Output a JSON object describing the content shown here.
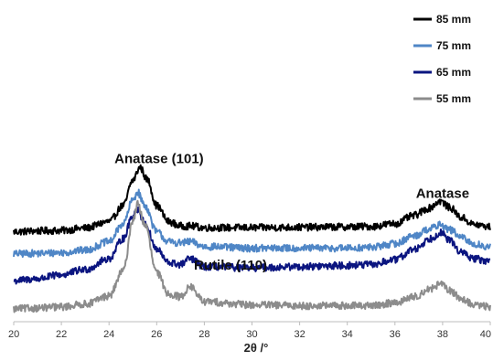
{
  "chart_data": {
    "type": "line",
    "title": "",
    "xlabel": "2θ /°",
    "ylabel": "",
    "xlim": [
      20,
      40
    ],
    "xticks": [
      20,
      22,
      24,
      26,
      28,
      30,
      32,
      34,
      36,
      38,
      40
    ],
    "yaxis_visible": false,
    "grid": false,
    "legend_position": "top-right",
    "series": [
      {
        "name": "85 mm",
        "color": "#000000",
        "baseline": 1.92,
        "points": [
          [
            20,
            0.0
          ],
          [
            21,
            0.02
          ],
          [
            22,
            0.03
          ],
          [
            23,
            0.09
          ],
          [
            24,
            0.25
          ],
          [
            24.6,
            0.65
          ],
          [
            25.0,
            1.28
          ],
          [
            25.3,
            1.6
          ],
          [
            25.6,
            1.3
          ],
          [
            26.0,
            0.65
          ],
          [
            26.5,
            0.25
          ],
          [
            27.0,
            0.14
          ],
          [
            27.4,
            0.14
          ],
          [
            28.0,
            0.1
          ],
          [
            30,
            0.1
          ],
          [
            32,
            0.11
          ],
          [
            34,
            0.12
          ],
          [
            35,
            0.13
          ],
          [
            36,
            0.2
          ],
          [
            36.8,
            0.4
          ],
          [
            37.4,
            0.58
          ],
          [
            37.9,
            0.76
          ],
          [
            38.3,
            0.6
          ],
          [
            38.8,
            0.35
          ],
          [
            39.3,
            0.18
          ],
          [
            40,
            0.12
          ]
        ]
      },
      {
        "name": "75 mm",
        "color": "#4f86c6",
        "baseline": 1.37,
        "points": [
          [
            20,
            0.0
          ],
          [
            21,
            0.01
          ],
          [
            22,
            0.03
          ],
          [
            23,
            0.09
          ],
          [
            24,
            0.3
          ],
          [
            24.6,
            0.75
          ],
          [
            25.0,
            1.34
          ],
          [
            25.2,
            1.53
          ],
          [
            25.5,
            1.2
          ],
          [
            26.0,
            0.55
          ],
          [
            26.5,
            0.3
          ],
          [
            27.0,
            0.27
          ],
          [
            27.4,
            0.3
          ],
          [
            28.0,
            0.18
          ],
          [
            30,
            0.14
          ],
          [
            32,
            0.14
          ],
          [
            34,
            0.14
          ],
          [
            35,
            0.16
          ],
          [
            36,
            0.25
          ],
          [
            36.8,
            0.45
          ],
          [
            37.5,
            0.63
          ],
          [
            37.9,
            0.72
          ],
          [
            38.3,
            0.6
          ],
          [
            38.8,
            0.4
          ],
          [
            39.3,
            0.24
          ],
          [
            40,
            0.17
          ]
        ]
      },
      {
        "name": "65 mm",
        "color": "#0b1580",
        "baseline": 0.7,
        "points": [
          [
            20,
            0.0
          ],
          [
            21,
            0.05
          ],
          [
            22,
            0.15
          ],
          [
            23,
            0.28
          ],
          [
            24,
            0.55
          ],
          [
            24.6,
            1.05
          ],
          [
            25.0,
            1.63
          ],
          [
            25.2,
            1.78
          ],
          [
            25.5,
            1.43
          ],
          [
            26.0,
            0.78
          ],
          [
            26.5,
            0.45
          ],
          [
            27.0,
            0.4
          ],
          [
            27.4,
            0.55
          ],
          [
            28.0,
            0.35
          ],
          [
            30,
            0.32
          ],
          [
            32,
            0.35
          ],
          [
            34,
            0.38
          ],
          [
            35,
            0.4
          ],
          [
            36,
            0.52
          ],
          [
            36.8,
            0.78
          ],
          [
            37.5,
            1.05
          ],
          [
            37.9,
            1.2
          ],
          [
            38.3,
            1.0
          ],
          [
            38.8,
            0.7
          ],
          [
            39.3,
            0.55
          ],
          [
            40,
            0.48
          ]
        ]
      },
      {
        "name": "55 mm",
        "color": "#8c8c8c",
        "baseline": 0.0,
        "points": [
          [
            20,
            0.0
          ],
          [
            21,
            0.02
          ],
          [
            22,
            0.05
          ],
          [
            23,
            0.12
          ],
          [
            24,
            0.32
          ],
          [
            24.6,
            0.95
          ],
          [
            25.0,
            2.2
          ],
          [
            25.2,
            2.6
          ],
          [
            25.5,
            2.1
          ],
          [
            26.0,
            0.9
          ],
          [
            26.5,
            0.38
          ],
          [
            27.0,
            0.3
          ],
          [
            27.4,
            0.55
          ],
          [
            28.0,
            0.18
          ],
          [
            30,
            0.1
          ],
          [
            32,
            0.08
          ],
          [
            34,
            0.08
          ],
          [
            35,
            0.08
          ],
          [
            36,
            0.15
          ],
          [
            36.8,
            0.3
          ],
          [
            37.5,
            0.5
          ],
          [
            37.9,
            0.62
          ],
          [
            38.3,
            0.45
          ],
          [
            38.8,
            0.25
          ],
          [
            39.3,
            0.1
          ],
          [
            40,
            0.05
          ]
        ]
      }
    ],
    "annotations": [
      {
        "text": "Anatase (101)",
        "x": 26.1,
        "y": 3.62
      },
      {
        "text": "Anatase",
        "x": 38.0,
        "y": 2.76
      },
      {
        "text": "Rutile (110)",
        "x": 29.1,
        "y": 0.98
      }
    ]
  }
}
